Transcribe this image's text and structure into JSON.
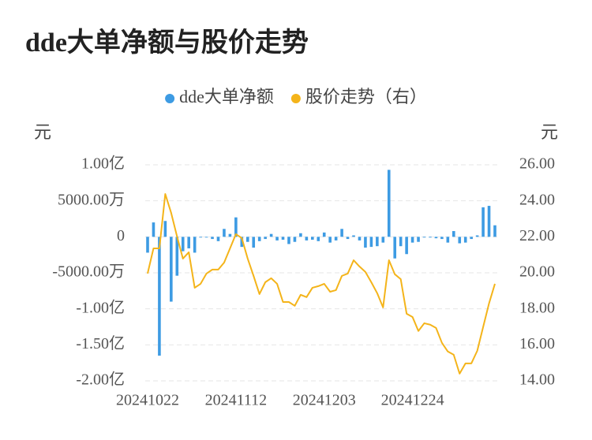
{
  "chart_data": {
    "type": "combo",
    "title": "dde大单净额与股价走势",
    "y_label": "元",
    "y2_label": "元",
    "categories": [
      "20241022",
      null,
      null,
      null,
      null,
      null,
      null,
      null,
      null,
      null,
      null,
      null,
      null,
      null,
      null,
      "20241112",
      null,
      null,
      null,
      null,
      null,
      null,
      null,
      null,
      null,
      null,
      null,
      null,
      null,
      null,
      "20241203",
      null,
      null,
      null,
      null,
      null,
      null,
      null,
      null,
      null,
      null,
      null,
      null,
      null,
      null,
      "20241224",
      null,
      null,
      null,
      null,
      null,
      null,
      null,
      null,
      null,
      null,
      null,
      null,
      null,
      null
    ],
    "series": [
      {
        "name": "dde大单净额",
        "type": "bar",
        "color": "#3d9be3",
        "values": [
          -22000000,
          20000000,
          -165000000,
          22000000,
          -90000000,
          -54000000,
          -20000000,
          -16000000,
          -22000000,
          -1000000,
          -1000000,
          -3000000,
          -6000000,
          11000000,
          4000000,
          27000000,
          -14000000,
          -7000000,
          -15000000,
          -6000000,
          -3000000,
          4000000,
          -5000000,
          -4000000,
          -10000000,
          -7000000,
          5000000,
          -5000000,
          -4000000,
          -6000000,
          6000000,
          -8000000,
          -5000000,
          11000000,
          -3000000,
          2000000,
          -5000000,
          -15000000,
          -14000000,
          -13000000,
          -8000000,
          93000000,
          -30000000,
          -13000000,
          -24000000,
          -8000000,
          -7000000,
          -1000000,
          -1000000,
          -2000000,
          -3000000,
          -8000000,
          8000000,
          -9000000,
          -8000000,
          -3000000,
          2000000,
          41000000,
          43000000,
          16000000
        ]
      },
      {
        "name": "股价走势（右）",
        "type": "line",
        "axis": "y2",
        "color": "#f4b41a",
        "values": [
          19.96,
          21.36,
          21.36,
          24.38,
          23.33,
          22.02,
          20.79,
          21.14,
          19.17,
          19.39,
          19.96,
          20.18,
          20.18,
          20.57,
          21.36,
          22.15,
          21.93,
          20.79,
          19.83,
          18.82,
          19.48,
          19.7,
          19.39,
          18.38,
          18.38,
          18.17,
          18.78,
          18.65,
          19.17,
          19.26,
          19.39,
          18.95,
          19.04,
          19.83,
          19.96,
          20.7,
          20.35,
          20.05,
          19.48,
          18.87,
          18.08,
          20.7,
          19.92,
          19.65,
          17.73,
          17.55,
          16.77,
          17.2,
          17.12,
          16.94,
          16.11,
          15.63,
          15.45,
          14.4,
          14.97,
          14.97,
          15.67,
          16.99,
          18.3,
          19.39
        ]
      }
    ],
    "ylim": [
      -200000000,
      100000000
    ],
    "yticks": [
      {
        "value": 100000000,
        "label": "1.00亿"
      },
      {
        "value": 50000000,
        "label": "5000.00万"
      },
      0,
      {
        "value": -50000000,
        "label": "-5000.00万"
      },
      {
        "value": -100000000,
        "label": "-1.00亿"
      },
      {
        "value": -150000000,
        "label": "-1.50亿"
      },
      {
        "value": -200000000,
        "label": "-2.00亿"
      }
    ],
    "y2lim": [
      14,
      26
    ],
    "y2ticks": [
      {
        "value": 26,
        "label": "26.00"
      },
      {
        "value": 24,
        "label": "24.00"
      },
      {
        "value": 22,
        "label": "22.00"
      },
      {
        "value": 20,
        "label": "20.00"
      },
      {
        "value": 18,
        "label": "18.00"
      },
      {
        "value": 16,
        "label": "16.00"
      },
      {
        "value": 14,
        "label": "14.00"
      }
    ],
    "grid": true,
    "legend": "top"
  }
}
